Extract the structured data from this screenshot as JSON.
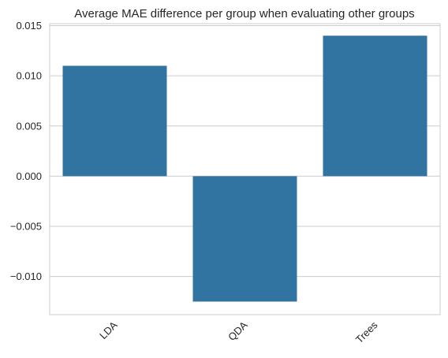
{
  "chart_data": {
    "type": "bar",
    "title": "Average MAE difference per group when evaluating other groups",
    "xlabel": "",
    "ylabel": "",
    "categories": [
      "LDA",
      "QDA",
      "Trees"
    ],
    "values": [
      0.011,
      -0.0125,
      0.014
    ],
    "ylim": [
      -0.0138,
      0.0152
    ],
    "yticks": [
      0.015,
      0.01,
      0.005,
      0.0,
      -0.005,
      -0.01
    ],
    "ytick_labels": [
      "0.015",
      "0.010",
      "0.005",
      "0.000",
      "−0.005",
      "−0.010"
    ],
    "grid": "horizontal",
    "bar_color": "#3274a1",
    "grid_color": "#cccccc",
    "xtick_rotation": 45
  }
}
